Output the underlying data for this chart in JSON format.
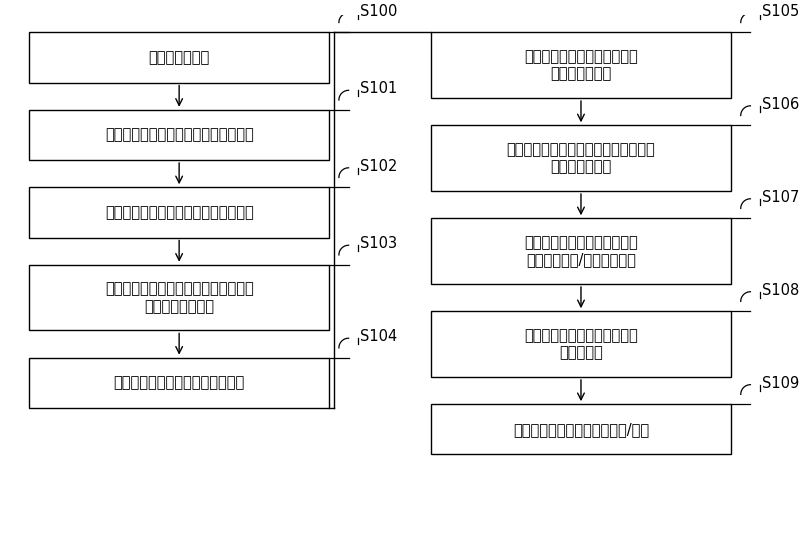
{
  "background_color": "#ffffff",
  "left_steps": [
    {
      "id": "S100",
      "text": "提供半导体衬底",
      "lines": 1
    },
    {
      "id": "S101",
      "text": "对半导体衬底进行蚀刻以形成阻挡区块",
      "lines": 1
    },
    {
      "id": "S102",
      "text": "在所述阻挡区块的相对二侧形成阻挡壁",
      "lines": 1
    },
    {
      "id": "S103",
      "text": "在半导体衬底上形成能覆盖阻挡区块和\n阻挡壁的衬底覆层",
      "lines": 2
    },
    {
      "id": "S104",
      "text": "在衬底覆层上形成栅氧化层和栅极",
      "lines": 1
    }
  ],
  "right_steps": [
    {
      "id": "S105",
      "text": "在栅氧化层和栅极的相对二侧\n形成偏移隔离层",
      "lines": 2
    },
    {
      "id": "S106",
      "text": "在半导体衬底内进行低掺杂离子注入和\n袋状区离子注入",
      "lines": 2
    },
    {
      "id": "S107",
      "text": "快速热退火，在半导体衬底内\n形成低掺杂源/漏区和袋状区",
      "lines": 2
    },
    {
      "id": "S108",
      "text": "在栅氧化层和栅极的相对二侧\n形成隔离层",
      "lines": 2
    },
    {
      "id": "S109",
      "text": "在半导体衬底内形成重掺杂源/漏区",
      "lines": 1
    }
  ],
  "line_color": "#000000",
  "box_edge_color": "#000000",
  "text_color": "#000000",
  "label_color": "#000000"
}
